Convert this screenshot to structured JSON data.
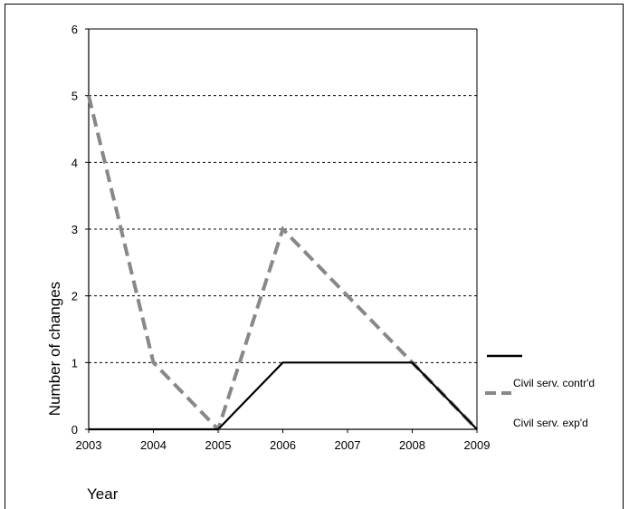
{
  "chart_data": {
    "type": "line",
    "x": [
      "2003",
      "2004",
      "2005",
      "2006",
      "2007",
      "2008",
      "2009"
    ],
    "series": [
      {
        "name": "Civil serv. contr'd",
        "values": [
          0,
          0,
          0,
          1,
          1,
          1,
          0
        ],
        "color": "#000000",
        "style": "solid"
      },
      {
        "name": "Civil serv. exp'd",
        "values": [
          5,
          1,
          0,
          3,
          2,
          1,
          0
        ],
        "color": "#888888",
        "style": "dashed"
      }
    ],
    "yticks": [
      "0",
      "1",
      "2",
      "3",
      "4",
      "5",
      "6"
    ],
    "xlabel": "Year",
    "ylabel": "Number of changes",
    "ylim": [
      0,
      6
    ],
    "grid": "horizontal dotted",
    "legend_position": "right"
  }
}
